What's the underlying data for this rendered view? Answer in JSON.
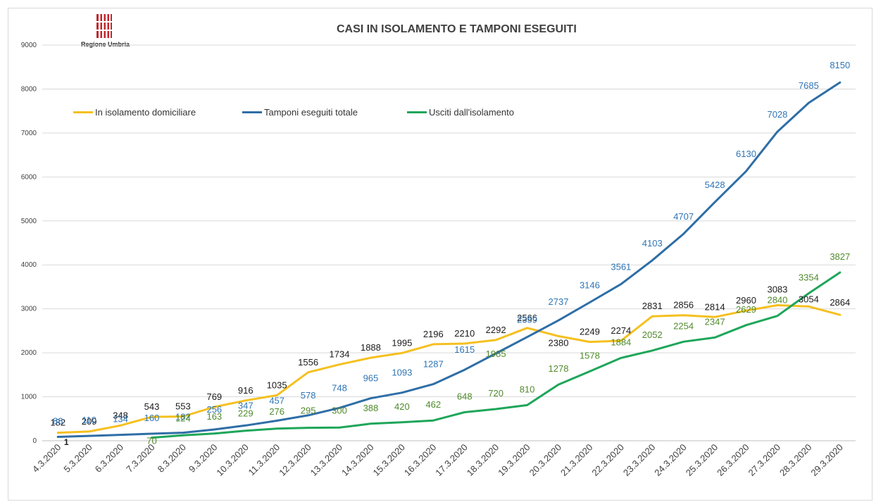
{
  "title": "CASI IN ISOLAMENTO E TAMPONI ESEGUITI",
  "logo": {
    "text": "Regione Umbria"
  },
  "chart_data": {
    "type": "line",
    "title": "CASI IN ISOLAMENTO E TAMPONI ESEGUITI",
    "xlabel": "",
    "ylabel": "",
    "ylim": [
      0,
      9000
    ],
    "yticks": [
      "0",
      "1000",
      "2000",
      "3000",
      "4000",
      "5000",
      "6000",
      "7000",
      "8000",
      "9000"
    ],
    "grid": true,
    "legend": "top-left",
    "categories": [
      "4.3.2020",
      "5.3.2020",
      "6.3.2020",
      "7.3.2020",
      "8.3.2020",
      "9.3.2020",
      "10.3.2020",
      "11.3.2020",
      "12.3.2020",
      "13.3.2020",
      "14.3.2020",
      "15.3.2020",
      "16.3.2020",
      "17.3.2020",
      "18.3.2020",
      "19.3.2020",
      "20.3.2020",
      "21.3.2020",
      "22.3.2020",
      "23.3.2020",
      "24.3.2020",
      "25.3.2020",
      "26.3.2020",
      "27.3.2020",
      "28.3.2020",
      "29.3.2020"
    ],
    "series": [
      {
        "name": "In isolamento domiciliare",
        "color": "#f5c01f",
        "label_color": "#1a1a1a",
        "values": [
          182,
          209,
          348,
          543,
          553,
          769,
          916,
          1035,
          1556,
          1734,
          1888,
          1995,
          2196,
          2210,
          2292,
          2566,
          2380,
          2249,
          2274,
          2831,
          2856,
          2814,
          2960,
          3083,
          3054,
          2864
        ],
        "labels": [
          "182",
          "209",
          "348",
          "543",
          "553",
          "769",
          "916",
          "1035",
          "1556",
          "1734",
          "1888",
          "1995",
          "2196",
          "2210",
          "2292",
          "2566",
          "2380",
          "2249",
          "2274",
          "2831",
          "2856",
          "2814",
          "2960",
          "3083",
          "3054",
          "2864"
        ]
      },
      {
        "name": "Tamponi eseguiti totale",
        "color": "#2e6ea6",
        "label_color": "#2e75b6",
        "values": [
          88,
          110,
          134,
          160,
          182,
          256,
          347,
          457,
          578,
          748,
          965,
          1093,
          1287,
          1615,
          1985,
          2359,
          2737,
          3146,
          3561,
          4103,
          4707,
          5428,
          6130,
          7028,
          7685,
          8150
        ],
        "labels": [
          "88",
          "110",
          "134",
          "160",
          "182",
          "256",
          "347",
          "457",
          "578",
          "748",
          "965",
          "1093",
          "1287",
          "1615",
          "",
          "2359",
          "2737",
          "3146",
          "3561",
          "4103",
          "4707",
          "5428",
          "6130",
          "7028",
          "7685",
          "8150"
        ]
      },
      {
        "name": "Usciti dall'isolamento",
        "color": "#1ea65a",
        "label_color": "#4f8a2b",
        "values": [
          null,
          null,
          null,
          70,
          124,
          163,
          229,
          276,
          295,
          300,
          388,
          420,
          462,
          648,
          720,
          810,
          1278,
          1578,
          1884,
          2052,
          2254,
          2347,
          2629,
          2840,
          3354,
          3827
        ],
        "labels": [
          "",
          "",
          "",
          "70",
          "124",
          "163",
          "229",
          "276",
          "295",
          "300",
          "388",
          "420",
          "462",
          "648",
          "720",
          "810",
          "1278",
          "1578",
          "1884",
          "2052",
          "2254",
          "2347",
          "2629",
          "2840",
          "3354",
          "3827"
        ],
        "extra_label": "1985",
        "extra_label_index": 14
      }
    ],
    "annotation": "1"
  }
}
